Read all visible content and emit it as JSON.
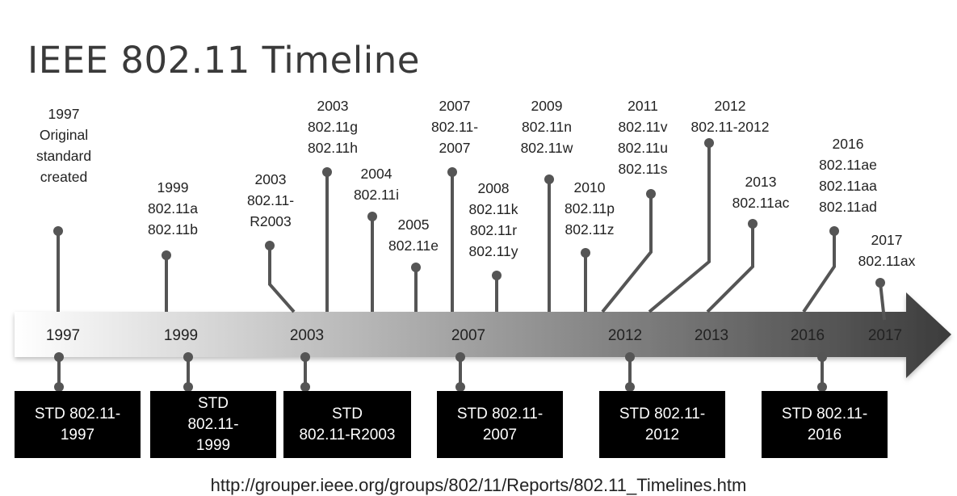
{
  "title": "IEEE 802.11 Timeline",
  "events": [
    {
      "id": "1997",
      "lines": [
        "1997",
        "Original",
        "standard",
        "created"
      ]
    },
    {
      "id": "1999",
      "lines": [
        "1999",
        "802.11a",
        "802.11b"
      ]
    },
    {
      "id": "2003a",
      "lines": [
        "2003",
        "802.11-",
        "R2003"
      ]
    },
    {
      "id": "2003b",
      "lines": [
        "2003",
        "802.11g",
        "802.11h"
      ]
    },
    {
      "id": "2004",
      "lines": [
        "2004",
        "802.11i"
      ]
    },
    {
      "id": "2005",
      "lines": [
        "2005",
        "802.11e"
      ]
    },
    {
      "id": "2007",
      "lines": [
        "2007",
        "802.11-",
        "2007"
      ]
    },
    {
      "id": "2008",
      "lines": [
        "2008",
        "802.11k",
        "802.11r",
        "802.11y"
      ]
    },
    {
      "id": "2009",
      "lines": [
        "2009",
        "802.11n",
        "802.11w"
      ]
    },
    {
      "id": "2010",
      "lines": [
        "2010",
        "802.11p",
        "802.11z"
      ]
    },
    {
      "id": "2011",
      "lines": [
        "2011",
        "802.11v",
        "802.11u",
        "802.11s"
      ]
    },
    {
      "id": "2012",
      "lines": [
        "2012",
        "802.11-2012"
      ]
    },
    {
      "id": "2013",
      "lines": [
        "2013",
        "802.11ac"
      ]
    },
    {
      "id": "2016",
      "lines": [
        "2016",
        "802.11ae",
        "802.11aa",
        "802.11ad"
      ]
    },
    {
      "id": "2017",
      "lines": [
        "2017",
        "802.11ax"
      ]
    }
  ],
  "axis_years": [
    "1997",
    "1999",
    "2003",
    "2007",
    "2012",
    "2013",
    "2016",
    "2017"
  ],
  "standards": [
    {
      "id": "std1997",
      "lines": [
        "STD 802.11-",
        "1997"
      ]
    },
    {
      "id": "std1999",
      "lines": [
        "STD",
        "802.11-",
        "1999"
      ]
    },
    {
      "id": "std2003",
      "lines": [
        "STD",
        "802.11-R2003"
      ]
    },
    {
      "id": "std2007",
      "lines": [
        "STD 802.11-",
        "2007"
      ]
    },
    {
      "id": "std2012",
      "lines": [
        "STD 802.11-",
        "2012"
      ]
    },
    {
      "id": "std2016",
      "lines": [
        "STD 802.11-",
        "2016"
      ]
    }
  ],
  "source_url": "http://grouper.ieee.org/groups/802/11/Reports/802.11_Timelines.htm",
  "colors": {
    "arrow_start": "#ffffff",
    "arrow_end": "#3c3c3c",
    "connector": "#555555",
    "std_box": "#000000"
  }
}
